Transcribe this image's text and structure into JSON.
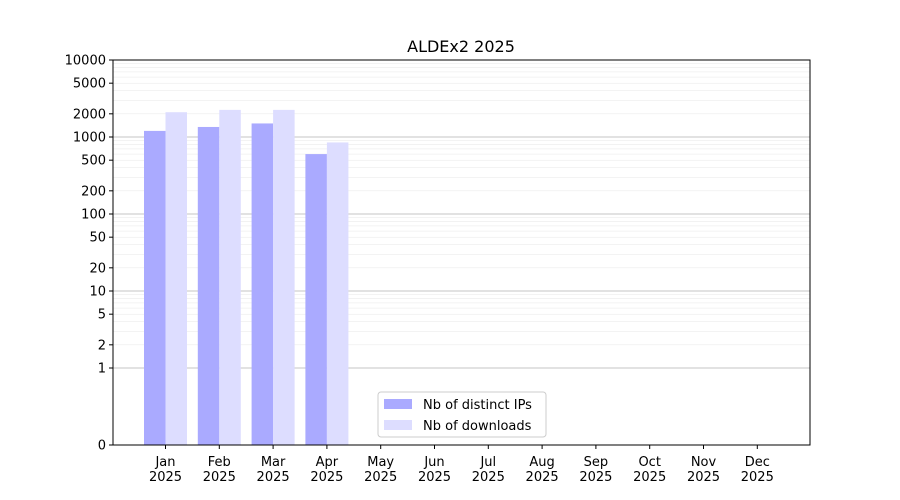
{
  "chart_data": {
    "type": "bar",
    "title": "ALDEx2 2025",
    "xlabel": "",
    "ylabel": "",
    "yscale": "symlog",
    "ylim": [
      0,
      10000
    ],
    "y_ticks": [
      0,
      1,
      2,
      5,
      10,
      20,
      50,
      100,
      200,
      500,
      1000,
      2000,
      5000,
      10000
    ],
    "categories": [
      "Jan\n2025",
      "Feb\n2025",
      "Mar\n2025",
      "Apr\n2025",
      "May\n2025",
      "Jun\n2025",
      "Jul\n2025",
      "Aug\n2025",
      "Sep\n2025",
      "Oct\n2025",
      "Nov\n2025",
      "Dec\n2025"
    ],
    "series": [
      {
        "name": "Nb of distinct IPs",
        "color": "#aaaaff",
        "values": [
          1200,
          1350,
          1500,
          600,
          0,
          0,
          0,
          0,
          0,
          0,
          0,
          0
        ]
      },
      {
        "name": "Nb of downloads",
        "color": "#ddddff",
        "values": [
          2100,
          2250,
          2250,
          850,
          0,
          0,
          0,
          0,
          0,
          0,
          0,
          0
        ]
      }
    ],
    "grid": true,
    "legend_position": "bottom-center"
  }
}
